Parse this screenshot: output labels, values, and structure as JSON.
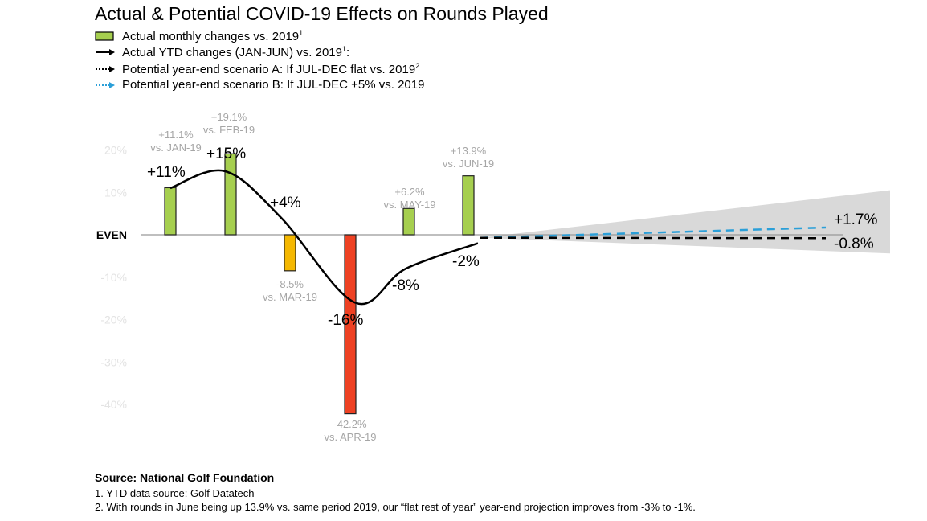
{
  "title": "Actual & Potential COVID-19 Effects on Rounds Played",
  "legend": [
    {
      "label": "Actual monthly changes vs. 2019",
      "sup": "1",
      "icon": "green-box"
    },
    {
      "label": "Actual YTD changes (JAN-JUN) vs. 2019",
      "sup": "1",
      "suffix": ":",
      "icon": "solid-black-arrow"
    },
    {
      "label": "Potential year-end scenario A: If JUL-DEC flat vs. 2019",
      "sup": "2",
      "icon": "dotted-black-arrow"
    },
    {
      "label": "Potential year-end scenario B: If JUL-DEC +5% vs. 2019",
      "sup": "",
      "icon": "dotted-blue-arrow"
    }
  ],
  "chart_data": {
    "type": "bar",
    "title": "Actual & Potential COVID-19 Effects on Rounds Played",
    "ylim": [
      -45,
      20
    ],
    "yticks": [
      {
        "value": 20,
        "label": "20%"
      },
      {
        "value": 10,
        "label": "10%"
      },
      {
        "value": 0,
        "label": "EVEN"
      },
      {
        "value": -10,
        "label": "-10%"
      },
      {
        "value": -20,
        "label": "-20%"
      },
      {
        "value": -30,
        "label": "-30%"
      },
      {
        "value": -40,
        "label": "-40%"
      }
    ],
    "categories": [
      "JAN",
      "FEB",
      "MAR",
      "APR",
      "MAY",
      "JUN"
    ],
    "monthly": {
      "values": [
        11.1,
        19.1,
        -8.5,
        -42.2,
        6.2,
        13.9
      ],
      "labels": [
        [
          "+11.1%",
          "vs. JAN-19"
        ],
        [
          "+19.1%",
          "vs. FEB-19"
        ],
        [
          "-8.5%",
          "vs. MAR-19"
        ],
        [
          "-42.2%",
          "vs. APR-19"
        ],
        [
          "+6.2%",
          "vs. MAY-19"
        ],
        [
          "+13.9%",
          "vs. JUN-19"
        ]
      ],
      "colors": [
        "#a6cf4f",
        "#a6cf4f",
        "#f5b800",
        "#ee4123",
        "#a6cf4f",
        "#a6cf4f"
      ]
    },
    "ytd": {
      "values": [
        11,
        15,
        4,
        -16,
        -8,
        -2
      ],
      "labels": [
        "+11%",
        "+15%",
        "+4%",
        "-16%",
        "-8%",
        "-2%"
      ],
      "color": "#000000"
    },
    "scenarios": [
      {
        "name": "Potential year-end scenario B: If JUL-DEC +5% vs. 2019",
        "end_value": 1.7,
        "label": "+1.7%",
        "color": "#2b9fd8"
      },
      {
        "name": "Potential year-end scenario A: If JUL-DEC flat vs. 2019",
        "end_value": -0.8,
        "label": "-0.8%",
        "color": "#000000"
      }
    ],
    "grid": false
  },
  "source": "Source: National Golf Foundation",
  "footnotes": [
    "1. YTD data source: Golf Datatech",
    "2. With rounds in June being up 13.9% vs. same period 2019, our “flat rest of year” year-end projection improves from -3% to -1%."
  ]
}
